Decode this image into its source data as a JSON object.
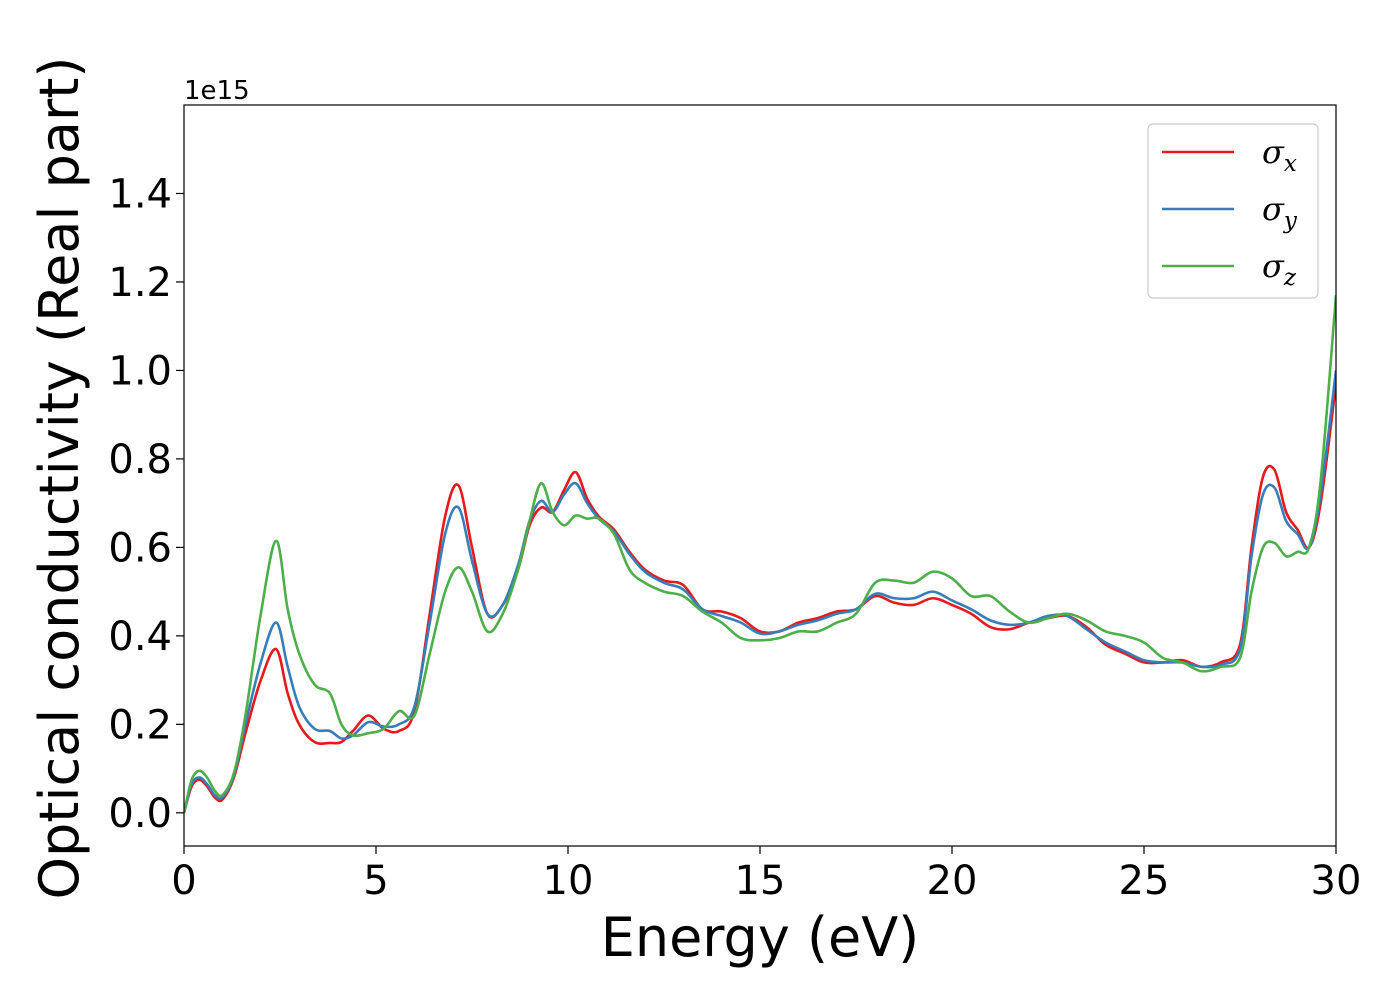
{
  "chart_data": {
    "type": "line",
    "xlabel": "Energy (eV)",
    "ylabel": "Optical conductivity (Real part)",
    "y_offset_text": "1e15",
    "xlim": [
      0,
      30
    ],
    "ylim": [
      -0.075,
      1.6
    ],
    "x_ticks": [
      0,
      5,
      10,
      15,
      20,
      25,
      30
    ],
    "x_tick_labels": [
      "0",
      "5",
      "10",
      "15",
      "20",
      "25",
      "30"
    ],
    "y_ticks": [
      0.0,
      0.2,
      0.4,
      0.6,
      0.8,
      1.0,
      1.2,
      1.4
    ],
    "y_tick_labels": [
      "0.0",
      "0.2",
      "0.4",
      "0.6",
      "0.8",
      "1.0",
      "1.2",
      "1.4"
    ],
    "grid": false,
    "legend_position": "upper right",
    "series": [
      {
        "name": "σx",
        "legend_base": "σ",
        "legend_sub": "x",
        "color": "#e41a1c",
        "x": [
          0,
          0.2,
          0.4,
          0.6,
          0.8,
          1.0,
          1.3,
          1.6,
          2.0,
          2.4,
          2.7,
          3.0,
          3.4,
          3.8,
          4.1,
          4.4,
          4.8,
          5.2,
          5.6,
          6.0,
          6.4,
          6.8,
          7.15,
          7.5,
          7.9,
          8.3,
          8.7,
          9.0,
          9.3,
          9.6,
          9.9,
          10.2,
          10.5,
          10.8,
          11.2,
          11.6,
          12.0,
          12.5,
          13.0,
          13.5,
          14.0,
          14.5,
          15.0,
          15.5,
          16.0,
          16.5,
          17.0,
          17.5,
          18.0,
          18.5,
          19.0,
          19.5,
          20.0,
          20.5,
          21.0,
          21.5,
          22.0,
          22.5,
          23.0,
          23.5,
          24.0,
          24.5,
          25.0,
          25.5,
          26.0,
          26.5,
          27.0,
          27.5,
          27.8,
          28.1,
          28.4,
          28.7,
          29.0,
          29.3,
          29.6,
          30.0
        ],
        "y": [
          0.0,
          0.06,
          0.075,
          0.06,
          0.035,
          0.03,
          0.08,
          0.18,
          0.3,
          0.37,
          0.27,
          0.2,
          0.16,
          0.158,
          0.16,
          0.185,
          0.22,
          0.19,
          0.185,
          0.23,
          0.45,
          0.67,
          0.74,
          0.6,
          0.45,
          0.47,
          0.55,
          0.65,
          0.69,
          0.68,
          0.73,
          0.77,
          0.71,
          0.67,
          0.64,
          0.59,
          0.55,
          0.525,
          0.515,
          0.46,
          0.455,
          0.44,
          0.41,
          0.41,
          0.43,
          0.44,
          0.455,
          0.46,
          0.49,
          0.475,
          0.47,
          0.485,
          0.47,
          0.45,
          0.42,
          0.415,
          0.43,
          0.44,
          0.445,
          0.42,
          0.38,
          0.36,
          0.34,
          0.34,
          0.345,
          0.33,
          0.34,
          0.38,
          0.6,
          0.76,
          0.775,
          0.68,
          0.64,
          0.6,
          0.7,
          0.97
        ]
      },
      {
        "name": "σy",
        "legend_base": "σ",
        "legend_sub": "y",
        "color": "#377eb8",
        "x": [
          0,
          0.2,
          0.4,
          0.6,
          0.8,
          1.0,
          1.3,
          1.6,
          2.0,
          2.4,
          2.7,
          3.0,
          3.4,
          3.8,
          4.1,
          4.4,
          4.8,
          5.2,
          5.6,
          6.0,
          6.4,
          6.8,
          7.15,
          7.5,
          7.9,
          8.3,
          8.7,
          9.0,
          9.3,
          9.6,
          9.9,
          10.2,
          10.5,
          10.8,
          11.2,
          11.6,
          12.0,
          12.5,
          13.0,
          13.5,
          14.0,
          14.5,
          15.0,
          15.5,
          16.0,
          16.5,
          17.0,
          17.5,
          18.0,
          18.5,
          19.0,
          19.5,
          20.0,
          20.5,
          21.0,
          21.5,
          22.0,
          22.5,
          23.0,
          23.5,
          24.0,
          24.5,
          25.0,
          25.5,
          26.0,
          26.5,
          27.0,
          27.5,
          27.8,
          28.1,
          28.4,
          28.7,
          29.0,
          29.3,
          29.6,
          30.0
        ],
        "y": [
          0.0,
          0.065,
          0.08,
          0.065,
          0.04,
          0.035,
          0.085,
          0.2,
          0.34,
          0.43,
          0.33,
          0.24,
          0.19,
          0.185,
          0.168,
          0.175,
          0.205,
          0.195,
          0.2,
          0.24,
          0.43,
          0.63,
          0.69,
          0.57,
          0.45,
          0.47,
          0.56,
          0.66,
          0.705,
          0.68,
          0.72,
          0.745,
          0.7,
          0.665,
          0.635,
          0.585,
          0.545,
          0.52,
          0.505,
          0.46,
          0.445,
          0.43,
          0.405,
          0.41,
          0.425,
          0.435,
          0.45,
          0.46,
          0.495,
          0.485,
          0.485,
          0.5,
          0.48,
          0.46,
          0.435,
          0.425,
          0.43,
          0.445,
          0.445,
          0.415,
          0.385,
          0.365,
          0.345,
          0.34,
          0.34,
          0.33,
          0.335,
          0.37,
          0.58,
          0.72,
          0.735,
          0.66,
          0.63,
          0.6,
          0.72,
          1.0
        ]
      },
      {
        "name": "σz",
        "legend_base": "σ",
        "legend_sub": "z",
        "color": "#4daf4a",
        "x": [
          0,
          0.2,
          0.4,
          0.6,
          0.8,
          1.0,
          1.3,
          1.6,
          2.0,
          2.4,
          2.7,
          3.0,
          3.4,
          3.8,
          4.1,
          4.4,
          4.8,
          5.2,
          5.6,
          6.0,
          6.4,
          6.8,
          7.15,
          7.5,
          7.9,
          8.3,
          8.7,
          9.0,
          9.3,
          9.6,
          9.9,
          10.2,
          10.5,
          10.8,
          11.2,
          11.6,
          12.0,
          12.5,
          13.0,
          13.5,
          14.0,
          14.5,
          15.0,
          15.5,
          16.0,
          16.5,
          17.0,
          17.5,
          18.0,
          18.5,
          19.0,
          19.5,
          20.0,
          20.5,
          21.0,
          21.5,
          22.0,
          22.5,
          23.0,
          23.5,
          24.0,
          24.5,
          25.0,
          25.5,
          26.0,
          26.5,
          27.0,
          27.5,
          27.8,
          28.1,
          28.4,
          28.7,
          29.0,
          29.3,
          29.6,
          30.0
        ],
        "y": [
          0.0,
          0.075,
          0.095,
          0.08,
          0.05,
          0.04,
          0.09,
          0.22,
          0.45,
          0.615,
          0.46,
          0.36,
          0.29,
          0.27,
          0.2,
          0.175,
          0.18,
          0.19,
          0.23,
          0.22,
          0.36,
          0.5,
          0.555,
          0.5,
          0.41,
          0.45,
          0.55,
          0.66,
          0.745,
          0.68,
          0.65,
          0.672,
          0.665,
          0.665,
          0.63,
          0.55,
          0.52,
          0.5,
          0.49,
          0.455,
          0.43,
          0.395,
          0.39,
          0.395,
          0.41,
          0.41,
          0.43,
          0.45,
          0.52,
          0.525,
          0.52,
          0.545,
          0.53,
          0.49,
          0.49,
          0.455,
          0.43,
          0.44,
          0.45,
          0.435,
          0.41,
          0.4,
          0.385,
          0.35,
          0.34,
          0.32,
          0.33,
          0.35,
          0.5,
          0.6,
          0.61,
          0.58,
          0.59,
          0.6,
          0.75,
          1.17
        ]
      }
    ]
  }
}
